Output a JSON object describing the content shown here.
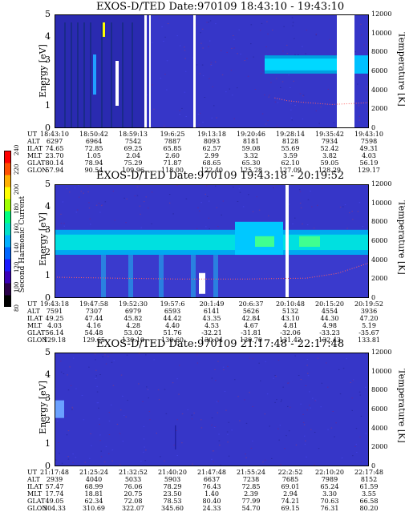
{
  "colorbar": {
    "label": "Second Harmonic Current",
    "ticks": [
      "80",
      "100",
      "120",
      "140",
      "160",
      "180",
      "200",
      "220",
      "240"
    ],
    "colors": [
      "#000000",
      "#2b004a",
      "#3a00b8",
      "#1a1aff",
      "#0066ff",
      "#00b0ff",
      "#00e0c8",
      "#00ff80",
      "#a0ff00",
      "#ffff00",
      "#ffb000",
      "#ff5000",
      "#ff0000"
    ]
  },
  "chart_data": [
    {
      "type": "heatmap",
      "title": "EXOS-D/TED   Date:970109   18:43:10 - 19:43:10",
      "ylabel_left": "Energy [eV]",
      "ylabel_right": "Temperature [K]",
      "y_left_ticks": [
        "0",
        "1",
        "2",
        "3",
        "4",
        "5"
      ],
      "y_right_ticks": [
        "0",
        "2000",
        "4000",
        "6000",
        "8000",
        "10000",
        "12000"
      ],
      "ylim_left": [
        0,
        5
      ],
      "ylim_right": [
        0,
        12000
      ],
      "eph_labels": [
        "UT",
        "ALT",
        "ILAT",
        "MLT",
        "GLAT",
        "GLON"
      ],
      "eph_columns": [
        [
          "18:43:10",
          "6297",
          "74.65",
          "23.70",
          "80.14",
          "57.94"
        ],
        [
          "18:50:42",
          "6964",
          "72.85",
          "1.05",
          "78.94",
          "90.54"
        ],
        [
          "18:59:13",
          "7542",
          "69.25",
          "2.04",
          "75.29",
          "109.96"
        ],
        [
          "19:6:25",
          "7887",
          "65.85",
          "2.60",
          "71.87",
          "118.00"
        ],
        [
          "19:13:18",
          "8093",
          "62.57",
          "2.99",
          "68.65",
          "122.40"
        ],
        [
          "19:20:46",
          "8181",
          "59.08",
          "3.32",
          "65.30",
          "125.28"
        ],
        [
          "19:28:14",
          "8128",
          "55.69",
          "3.59",
          "62.10",
          "127.09"
        ],
        [
          "19:35:42",
          "7934",
          "52.42",
          "3.82",
          "59.05",
          "128.29"
        ],
        [
          "19:43:10",
          "7598",
          "49.31",
          "4.03",
          "56.19",
          "129.17"
        ]
      ],
      "temperature_trace": {
        "x_frac": [
          0.7,
          0.74,
          0.8,
          0.88,
          0.95,
          1.0
        ],
        "kelvin": [
          3200,
          2900,
          2700,
          2500,
          2600,
          2700
        ]
      }
    },
    {
      "type": "heatmap",
      "title": "EXOS-D/TED   Date:970109   19:43:18 - 20:19:52",
      "ylabel_left": "Energy [eV]",
      "ylabel_right": "Temperature [K]",
      "y_left_ticks": [
        "0",
        "1",
        "2",
        "3",
        "4",
        "5"
      ],
      "y_right_ticks": [
        "0",
        "2000",
        "4000",
        "6000",
        "8000",
        "10000",
        "12000"
      ],
      "ylim_left": [
        0,
        5
      ],
      "ylim_right": [
        0,
        12000
      ],
      "eph_labels": [
        "UT",
        "ALT",
        "ILAT",
        "MLT",
        "GLAT",
        "GLON"
      ],
      "eph_columns": [
        [
          "19:43:18",
          "7591",
          "49.25",
          "4.03",
          "56.14",
          "129.18"
        ],
        [
          "19:47:58",
          "7307",
          "47.44",
          "4.16",
          "54.48",
          "129.65"
        ],
        [
          "19:52:30",
          "6979",
          "45.82",
          "4.28",
          "53.02",
          "130.10"
        ],
        [
          "19:57:6",
          "6593",
          "44.42",
          "4.40",
          "51.76",
          "130.60"
        ],
        [
          "20:1:49",
          "6141",
          "43.35",
          "4.53",
          "-32.21",
          "130.04"
        ],
        [
          "20:6:37",
          "5626",
          "42.84",
          "4.67",
          "-31.81",
          "130.70"
        ],
        [
          "20:10:48",
          "5132",
          "43.10",
          "4.81",
          "-32.06",
          "131.42"
        ],
        [
          "20:15:20",
          "4554",
          "44.30",
          "4.98",
          "-33.23",
          "132.43"
        ],
        [
          "20:19:52",
          "3936",
          "47.20",
          "5.19",
          "-35.67",
          "133.81"
        ]
      ],
      "temperature_trace": {
        "x_frac": [
          0.0,
          0.2,
          0.4,
          0.6,
          0.8,
          0.9,
          1.0
        ],
        "kelvin": [
          2200,
          2100,
          2000,
          2000,
          2100,
          2600,
          3700
        ]
      }
    },
    {
      "type": "heatmap",
      "title": "EXOS-D/TED   Date:970109   21:17:48 - 22:17:48",
      "ylabel_left": "Energy [eV]",
      "ylabel_right": "Temperature [K]",
      "y_left_ticks": [
        "0",
        "1",
        "2",
        "3",
        "4",
        "5"
      ],
      "y_right_ticks": [
        "0",
        "2000",
        "4000",
        "6000",
        "8000",
        "10000",
        "12000"
      ],
      "ylim_left": [
        0,
        5
      ],
      "ylim_right": [
        0,
        12000
      ],
      "eph_labels": [
        "UT",
        "ALT",
        "ILAT",
        "MLT",
        "GLAT",
        "GLON"
      ],
      "eph_columns": [
        [
          "21:17:48",
          "2939",
          "57.47",
          "17.74",
          "49.05",
          "304.33"
        ],
        [
          "21:25:24",
          "4040",
          "68.99",
          "18.81",
          "62.34",
          "310.69"
        ],
        [
          "21:32:52",
          "5033",
          "76.06",
          "20.75",
          "72.08",
          "322.07"
        ],
        [
          "21:40:20",
          "5903",
          "78.29",
          "23.50",
          "78.53",
          "345.60"
        ],
        [
          "21:47:48",
          "6637",
          "76.43",
          "1.40",
          "80.40",
          "24.33"
        ],
        [
          "21:55:24",
          "7238",
          "72.85",
          "2.39",
          "77.99",
          "54.70"
        ],
        [
          "22:2:52",
          "7685",
          "69.01",
          "2.94",
          "74.21",
          "69.15"
        ],
        [
          "22:10:20",
          "7989",
          "65.24",
          "3.30",
          "70.63",
          "76.31"
        ],
        [
          "22:17:48",
          "8152",
          "61.59",
          "3.55",
          "66.58",
          "80.20"
        ]
      ]
    }
  ]
}
